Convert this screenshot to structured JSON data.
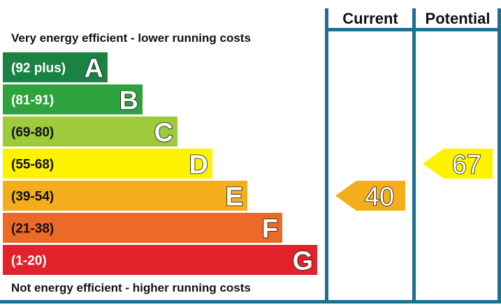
{
  "chart_data": {
    "type": "bar",
    "subtype": "energy-efficiency-rating",
    "top_caption": "Very energy efficient - lower running costs",
    "bottom_caption": "Not energy efficient - higher running costs",
    "columns": [
      "Current",
      "Potential"
    ],
    "bands": [
      {
        "letter": "A",
        "range": "(92 plus)",
        "min": 92,
        "max": 100,
        "color": "#1a8343",
        "label_color": "#ffffff"
      },
      {
        "letter": "B",
        "range": "(81-91)",
        "min": 81,
        "max": 91,
        "color": "#2ea23d",
        "label_color": "#ffffff"
      },
      {
        "letter": "C",
        "range": "(69-80)",
        "min": 69,
        "max": 80,
        "color": "#9dcb3c",
        "label_color": "#111111"
      },
      {
        "letter": "D",
        "range": "(55-68)",
        "min": 55,
        "max": 68,
        "color": "#fff200",
        "label_color": "#111111"
      },
      {
        "letter": "E",
        "range": "(39-54)",
        "min": 39,
        "max": 54,
        "color": "#f4ae1c",
        "label_color": "#111111"
      },
      {
        "letter": "F",
        "range": "(21-38)",
        "min": 21,
        "max": 38,
        "color": "#ec6a27",
        "label_color": "#111111"
      },
      {
        "letter": "G",
        "range": "(1-20)",
        "min": 1,
        "max": 20,
        "color": "#e2222a",
        "label_color": "#ffffff"
      }
    ],
    "current": {
      "value": 40,
      "band": "E",
      "color": "#f4ae1c"
    },
    "potential": {
      "value": 67,
      "band": "D",
      "color": "#fff200"
    }
  }
}
